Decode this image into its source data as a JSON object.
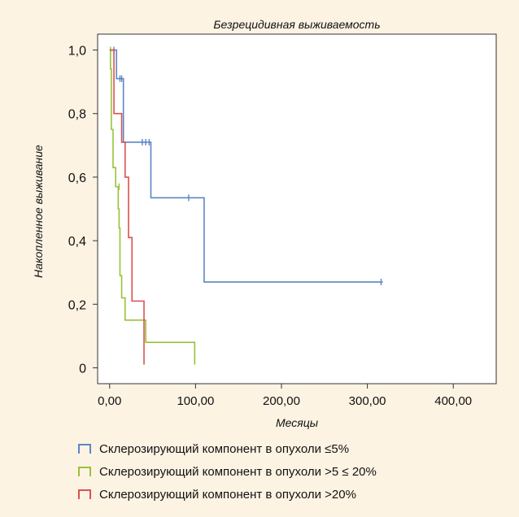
{
  "chart_data": {
    "type": "line",
    "title": "Безрецидивная выживаемость",
    "xlabel": "Месяцы",
    "ylabel": "Накопленное выживание",
    "xlim": [
      -14,
      450
    ],
    "ylim": [
      -0.05,
      1.05
    ],
    "x_ticks": [
      0,
      100,
      200,
      300,
      400
    ],
    "x_tick_labels": [
      "0,00",
      "100,00",
      "200,00",
      "300,00",
      "400,00"
    ],
    "y_ticks": [
      0,
      0.2,
      0.4,
      0.6,
      0.8,
      1.0
    ],
    "y_tick_labels": [
      "0",
      "0,2",
      "0,4",
      "0,6",
      "0,8",
      "1,0"
    ],
    "grid": false,
    "legend_position": "bottom",
    "series": [
      {
        "name": "Склерозирующий компонент в опухоли ≤5%",
        "color": "#5b86c6",
        "steps": [
          [
            0,
            1.0
          ],
          [
            8,
            0.91
          ],
          [
            16,
            0.71
          ],
          [
            48,
            0.535
          ],
          [
            110,
            0.27
          ],
          [
            318,
            0.27
          ]
        ],
        "censored": [
          [
            5,
            1.0
          ],
          [
            12,
            0.91
          ],
          [
            14,
            0.91
          ],
          [
            38,
            0.71
          ],
          [
            42,
            0.71
          ],
          [
            46,
            0.71
          ],
          [
            92,
            0.535
          ],
          [
            316,
            0.27
          ]
        ]
      },
      {
        "name": "Склерозирующий компонент в опухоли >5 ≤ 20%",
        "color": "#98c23a",
        "steps": [
          [
            0,
            1.0
          ],
          [
            1,
            0.94
          ],
          [
            2,
            0.75
          ],
          [
            4,
            0.63
          ],
          [
            7,
            0.57
          ],
          [
            10,
            0.5
          ],
          [
            11,
            0.44
          ],
          [
            12,
            0.29
          ],
          [
            14,
            0.22
          ],
          [
            18,
            0.15
          ],
          [
            42,
            0.08
          ],
          [
            99,
            0.08
          ],
          [
            99,
            0.01
          ]
        ],
        "censored": [
          [
            1,
            1.0
          ],
          [
            11,
            0.57
          ]
        ]
      },
      {
        "name": "Склерозирующий компонент в опухоли >20%",
        "color": "#d9534f",
        "steps": [
          [
            0,
            1.0
          ],
          [
            5,
            0.8
          ],
          [
            14,
            0.71
          ],
          [
            18,
            0.6
          ],
          [
            22,
            0.41
          ],
          [
            26,
            0.21
          ],
          [
            40,
            0.21
          ],
          [
            40,
            0.01
          ]
        ],
        "censored": []
      }
    ]
  }
}
